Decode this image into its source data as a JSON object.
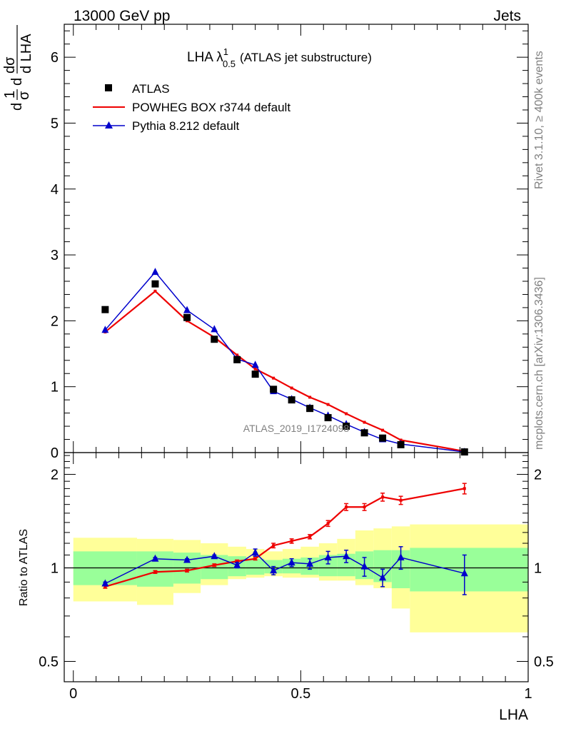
{
  "header": {
    "left": "13000 GeV pp",
    "right": "Jets"
  },
  "side_labels": {
    "rivet": "Rivet 3.1.10, ≥ 400k events",
    "mcplots": "mcplots.cern.ch [arXiv:1306.3436]"
  },
  "watermark": "ATLAS_2019_I1724098",
  "colors": {
    "atlas": "#000000",
    "powheg": "#ee0000",
    "pythia": "#0000cc",
    "band_yellow": "#ffff99",
    "band_green": "#99ff99"
  },
  "chart_data": [
    {
      "type": "line",
      "title": "LHA λ",
      "title_sup": "1",
      "title_sub": "0.5",
      "title_suffix": "(ATLAS jet substructure)",
      "ylabel_parts": {
        "d1": "d",
        "one": "1",
        "sigma1": "σ",
        "d2": "d",
        "dsig": "dσ",
        "dLHA": "d LHA"
      },
      "xlim": [
        -0.02,
        1.0
      ],
      "ylim": [
        0,
        6.5
      ],
      "yticks": [
        0,
        1,
        2,
        3,
        4,
        5,
        6
      ],
      "ytick_labels": [
        "0",
        "1",
        "2",
        "3",
        "4",
        "5",
        "6"
      ],
      "legend": [
        {
          "name": "ATLAS",
          "marker": "square"
        },
        {
          "name": "POWHEG BOX r3744 default",
          "marker": "line"
        },
        {
          "name": "Pythia 8.212 default",
          "marker": "triangle"
        }
      ],
      "x": [
        0.07,
        0.18,
        0.25,
        0.31,
        0.36,
        0.4,
        0.44,
        0.48,
        0.52,
        0.56,
        0.6,
        0.64,
        0.68,
        0.72,
        0.86
      ],
      "series": [
        {
          "name": "ATLAS",
          "values": [
            2.17,
            2.56,
            2.05,
            1.72,
            1.41,
            1.19,
            0.96,
            0.8,
            0.67,
            0.53,
            0.4,
            0.3,
            0.22,
            0.12,
            0.01
          ]
        },
        {
          "name": "POWHEG BOX r3744 default",
          "values": [
            1.83,
            2.45,
            2.0,
            1.75,
            1.48,
            1.27,
            1.13,
            0.98,
            0.84,
            0.73,
            0.59,
            0.46,
            0.34,
            0.19,
            0.02
          ]
        },
        {
          "name": "Pythia 8.212 default",
          "values": [
            1.86,
            2.74,
            2.16,
            1.87,
            1.42,
            1.33,
            0.93,
            0.81,
            0.68,
            0.56,
            0.43,
            0.31,
            0.2,
            0.13,
            0.01
          ]
        }
      ]
    },
    {
      "type": "line",
      "ylabel": "Ratio to ATLAS",
      "xlabel": "LHA",
      "xlim": [
        -0.02,
        1.0
      ],
      "ylim": [
        0.43,
        2.35
      ],
      "yticks": [
        0.5,
        1,
        2
      ],
      "ytick_labels": [
        "0.5",
        "1",
        "2"
      ],
      "xticks": [
        0,
        0.5,
        1
      ],
      "xtick_labels": [
        "0",
        "0.5",
        "1"
      ],
      "x": [
        0.07,
        0.18,
        0.25,
        0.31,
        0.36,
        0.4,
        0.44,
        0.48,
        0.52,
        0.56,
        0.6,
        0.64,
        0.68,
        0.72,
        0.86
      ],
      "series": [
        {
          "name": "POWHEG BOX r3744 default",
          "values": [
            0.87,
            0.97,
            0.98,
            1.02,
            1.05,
            1.07,
            1.18,
            1.22,
            1.26,
            1.39,
            1.57,
            1.57,
            1.69,
            1.65,
            1.8
          ],
          "errors": [
            0.01,
            0.01,
            0.01,
            0.01,
            0.01,
            0.01,
            0.02,
            0.02,
            0.02,
            0.03,
            0.04,
            0.04,
            0.05,
            0.05,
            0.07
          ]
        },
        {
          "name": "Pythia 8.212 default",
          "values": [
            0.89,
            1.07,
            1.06,
            1.09,
            1.02,
            1.12,
            0.98,
            1.04,
            1.03,
            1.08,
            1.09,
            1.01,
            0.93,
            1.08,
            0.96
          ],
          "errors": [
            0.01,
            0.01,
            0.01,
            0.01,
            0.02,
            0.03,
            0.03,
            0.03,
            0.04,
            0.05,
            0.05,
            0.07,
            0.06,
            0.09,
            0.14
          ]
        }
      ],
      "bands": {
        "edges": [
          0.0,
          0.14,
          0.22,
          0.28,
          0.34,
          0.38,
          0.42,
          0.46,
          0.5,
          0.54,
          0.58,
          0.62,
          0.66,
          0.7,
          0.74,
          1.0
        ],
        "green_lo": [
          0.88,
          0.87,
          0.89,
          0.92,
          0.94,
          0.95,
          0.96,
          0.96,
          0.95,
          0.94,
          0.94,
          0.92,
          0.9,
          0.86,
          0.84
        ],
        "green_hi": [
          1.13,
          1.13,
          1.12,
          1.1,
          1.09,
          1.07,
          1.06,
          1.07,
          1.08,
          1.1,
          1.11,
          1.13,
          1.14,
          1.14,
          1.16
        ],
        "yellow_lo": [
          0.78,
          0.76,
          0.83,
          0.88,
          0.92,
          0.93,
          0.94,
          0.93,
          0.93,
          0.91,
          0.91,
          0.88,
          0.86,
          0.74,
          0.62
        ],
        "yellow_hi": [
          1.25,
          1.24,
          1.23,
          1.2,
          1.17,
          1.15,
          1.13,
          1.15,
          1.17,
          1.2,
          1.24,
          1.32,
          1.34,
          1.36,
          1.38
        ]
      }
    }
  ]
}
